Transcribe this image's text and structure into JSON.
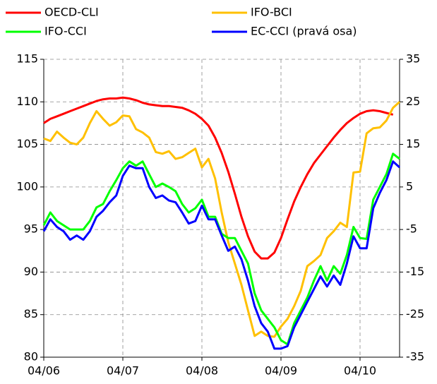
{
  "chart_data": {
    "type": "line",
    "categories": [
      "04/06",
      null,
      null,
      null,
      null,
      null,
      null,
      null,
      null,
      null,
      null,
      null,
      "04/07",
      null,
      null,
      null,
      null,
      null,
      null,
      null,
      null,
      null,
      null,
      null,
      "04/08",
      null,
      null,
      null,
      null,
      null,
      null,
      null,
      null,
      null,
      null,
      null,
      "04/09",
      null,
      null,
      null,
      null,
      null,
      null,
      null,
      null,
      null,
      null,
      null,
      "04/10",
      null,
      null,
      null,
      null,
      null,
      null
    ],
    "series": [
      {
        "name": "OECD-CLI",
        "color": "#ff0000",
        "values": [
          107.5,
          108.0,
          108.3,
          108.6,
          108.9,
          109.2,
          109.5,
          109.8,
          110.1,
          110.3,
          110.4,
          110.4,
          110.5,
          110.4,
          110.2,
          109.9,
          109.7,
          109.6,
          109.5,
          109.5,
          109.4,
          109.3,
          109.0,
          108.6,
          108.0,
          107.2,
          105.8,
          104.0,
          101.8,
          99.2,
          96.5,
          94.2,
          92.4,
          91.6,
          91.6,
          92.3,
          94.0,
          96.2,
          98.3,
          100.0,
          101.5,
          102.8,
          103.8,
          104.8,
          105.8,
          106.7,
          107.5,
          108.1,
          108.6,
          108.9,
          109.0,
          108.9,
          108.7,
          108.5,
          null
        ]
      },
      {
        "name": "IFO-BCI",
        "color": "#ffc000",
        "values": [
          105.7,
          105.4,
          106.5,
          105.8,
          105.2,
          105.0,
          105.8,
          107.5,
          108.9,
          108.0,
          107.2,
          107.6,
          108.4,
          108.3,
          106.8,
          106.4,
          105.8,
          104.1,
          103.9,
          104.2,
          103.3,
          103.5,
          104.0,
          104.5,
          102.3,
          103.3,
          101.0,
          97.0,
          93.5,
          91.0,
          88.5,
          85.5,
          82.5,
          83.0,
          82.5,
          82.4,
          83.6,
          84.5,
          86.0,
          87.8,
          90.7,
          91.3,
          92.0,
          94.0,
          94.8,
          95.8,
          95.3,
          101.7,
          101.8,
          106.3,
          106.9,
          107.0,
          107.8,
          109.3,
          110.0
        ]
      },
      {
        "name": "IFO-CCI",
        "color": "#00ff00",
        "values": [
          95.5,
          97.0,
          96.0,
          95.5,
          95.0,
          95.0,
          95.0,
          96.0,
          97.6,
          98.0,
          99.5,
          100.8,
          102.2,
          103.0,
          102.5,
          103.0,
          101.5,
          100.0,
          100.4,
          100.0,
          99.5,
          98.0,
          97.0,
          97.5,
          98.5,
          96.5,
          96.5,
          94.5,
          94.0,
          94.0,
          92.5,
          91.0,
          87.5,
          85.5,
          84.5,
          83.5,
          82.0,
          81.5,
          84.0,
          85.5,
          87.0,
          89.0,
          90.7,
          89.0,
          90.7,
          89.8,
          92.0,
          95.3,
          94.0,
          93.9,
          98.5,
          100.0,
          101.5,
          103.9,
          103.3
        ]
      },
      {
        "name": "EC-CCI (pravá osa)",
        "color": "#0000ff",
        "axis": "y2",
        "values": [
          -5.4,
          -2.6,
          -4.4,
          -5.4,
          -7.4,
          -6.4,
          -7.4,
          -5.4,
          -2.0,
          -0.6,
          1.4,
          3.0,
          7.6,
          10.0,
          9.4,
          9.4,
          5.0,
          2.4,
          3.0,
          1.8,
          1.4,
          -1.0,
          -3.6,
          -3.0,
          0.6,
          -2.6,
          -2.6,
          -6.4,
          -10.0,
          -9.0,
          -12.0,
          -17.0,
          -23.0,
          -27.0,
          -29.0,
          -33.0,
          -33.0,
          -32.4,
          -28.0,
          -25.0,
          -22.0,
          -19.0,
          -16.0,
          -18.4,
          -15.8,
          -18.0,
          -13.0,
          -6.6,
          -9.4,
          -9.4,
          0.0,
          3.6,
          6.6,
          11.0,
          9.6
        ]
      }
    ],
    "ylim": [
      80,
      115
    ],
    "yticks": [
      80,
      85,
      90,
      95,
      100,
      105,
      110,
      115
    ],
    "y2lim": [
      -35,
      35
    ],
    "y2ticks": [
      -35,
      -25,
      -15,
      -5,
      5,
      15,
      25,
      35
    ],
    "grid": true
  }
}
